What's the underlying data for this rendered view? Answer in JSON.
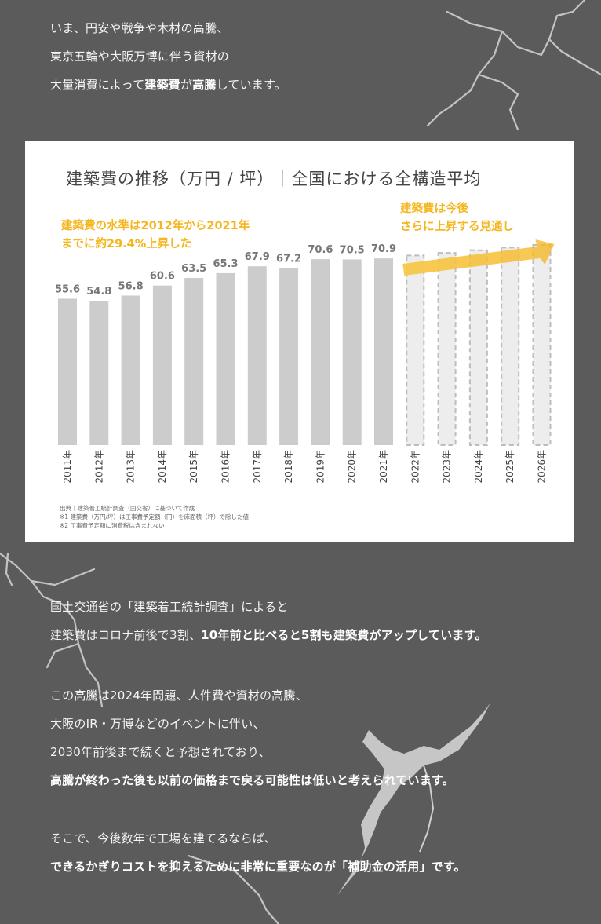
{
  "intro": {
    "line1": "いま、円安や戦争や木材の高騰、",
    "line2": "東京五輪や大阪万博に伴う資材の",
    "line3_pre": "大量消費によって",
    "line3_b1": "建築費",
    "line3_mid": "が",
    "line3_b2": "高騰",
    "line3_post": "しています。"
  },
  "body1": {
    "line1": "国土交通省の「建築着工統計調査」によると",
    "line2_pre": "建築費はコロナ前後で3割、",
    "line2_b": "10年前と比べると5割も建築費がアップしています。"
  },
  "body2": {
    "line1": "この高騰は2024年問題、人件費や資材の高騰、",
    "line2": "大阪のIR・万博などのイベントに伴い、",
    "line3": "2030年前後まで続くと予想されており、",
    "line4": "高騰が終わった後も以前の価格まで戻る可能性は低いと考えられています。"
  },
  "body3": {
    "line1": "そこで、今後数年で工場を建てるならば、",
    "line2": "できるかぎりコストを抑えるために非常に重要なのが「補助金の活用」です。"
  },
  "colors": {
    "background": "#5b5b5b",
    "bar": "#cccccc",
    "projected_fill": "#ededed",
    "projected_stroke": "#bdbdbd",
    "annotation": "#f5b51d",
    "value_label": "#777777"
  },
  "chart_data": {
    "type": "bar",
    "title": "建築費の推移（万円 / 坪）｜全国における全構造平均",
    "categories": [
      "2011年",
      "2012年",
      "2013年",
      "2014年",
      "2015年",
      "2016年",
      "2017年",
      "2018年",
      "2019年",
      "2020年",
      "2021年",
      "2022年",
      "2023年",
      "2024年",
      "2025年",
      "2026年"
    ],
    "values": [
      55.6,
      54.8,
      56.8,
      60.6,
      63.5,
      65.3,
      67.9,
      67.2,
      70.6,
      70.5,
      70.9,
      null,
      null,
      null,
      null,
      null
    ],
    "value_labels": [
      "55.6",
      "54.8",
      "56.8",
      "60.6",
      "63.5",
      "65.3",
      "67.9",
      "67.2",
      "70.6",
      "70.5",
      "70.9",
      "",
      "",
      "",
      "",
      ""
    ],
    "projected_values": [
      null,
      null,
      null,
      null,
      null,
      null,
      null,
      null,
      null,
      null,
      null,
      72.0,
      73.0,
      74.0,
      75.0,
      76.0
    ],
    "ylim": [
      0,
      76
    ],
    "xlabel": "",
    "ylabel": "",
    "annotation_left": [
      "建築費の水準は2012年から2021年",
      "までに約29.4%上昇した"
    ],
    "annotation_right": [
      "建築費は今後",
      "さらに上昇する見通し"
    ],
    "sources": [
      "出典｜建築着工統計調査（国交省）に基づいて作成",
      "※1 建築費（万円/坪）は工事費予定額（円）を床面積（坪）で除した値",
      "※2 工事費予定額に消費税は含まれない"
    ]
  }
}
